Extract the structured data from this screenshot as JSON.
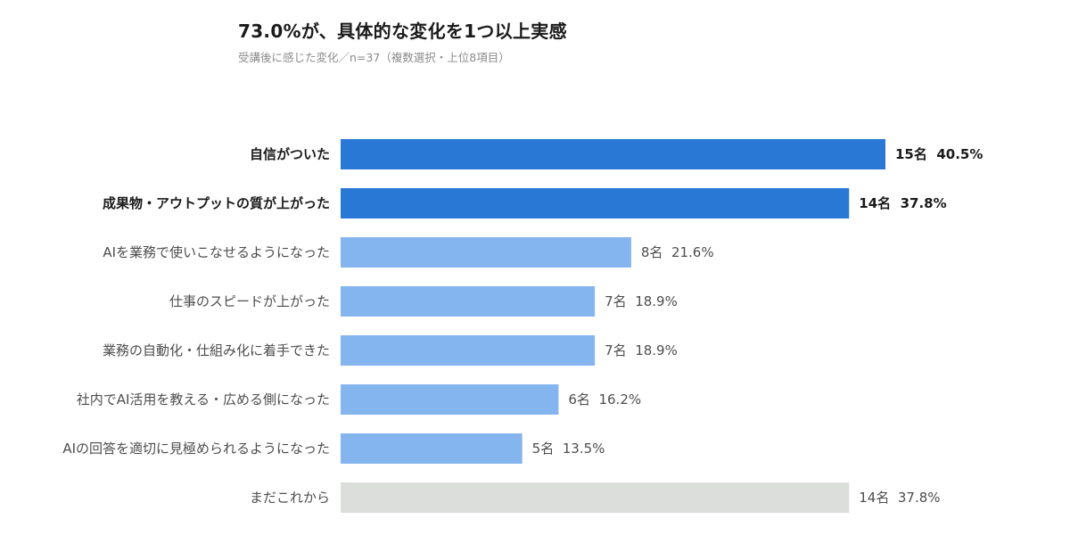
{
  "chart_data": {
    "type": "bar",
    "orientation": "horizontal",
    "title": "73.0%が、具体的な変化を1つ以上実感",
    "subtitle": "受講後に感じた変化／n=37（複数選択・上位8項目）",
    "xlim": [
      0,
      40.5
    ],
    "grid": false,
    "categories": [
      "自信がついた",
      "成果物・アウトプットの質が上がった",
      "AIを業務で使いこなせるようになった",
      "仕事のスピードが上がった",
      "業務の自動化・仕組み化に着手できた",
      "社内でAI活用を教える・広める側になった",
      "AIの回答を適切に見極められるようになった",
      "まだこれから"
    ],
    "values": [
      40.5,
      37.8,
      21.6,
      18.9,
      18.9,
      16.2,
      13.5,
      37.8
    ],
    "value_labels": [
      "15名  40.5%",
      "14名  37.8%",
      "8名  21.6%",
      "7名  18.9%",
      "7名  18.9%",
      "6名  16.2%",
      "5名  13.5%",
      "14名  37.8%"
    ],
    "bar_styles": [
      "top",
      "top",
      "other",
      "other",
      "other",
      "other",
      "other",
      "neutral"
    ],
    "colors": {
      "top": "#2a78d6",
      "other": "#85b5ee",
      "neutral": "#dcdedc",
      "label_strong": "#1a1a1a",
      "label_normal": "#4d4d4d"
    }
  }
}
